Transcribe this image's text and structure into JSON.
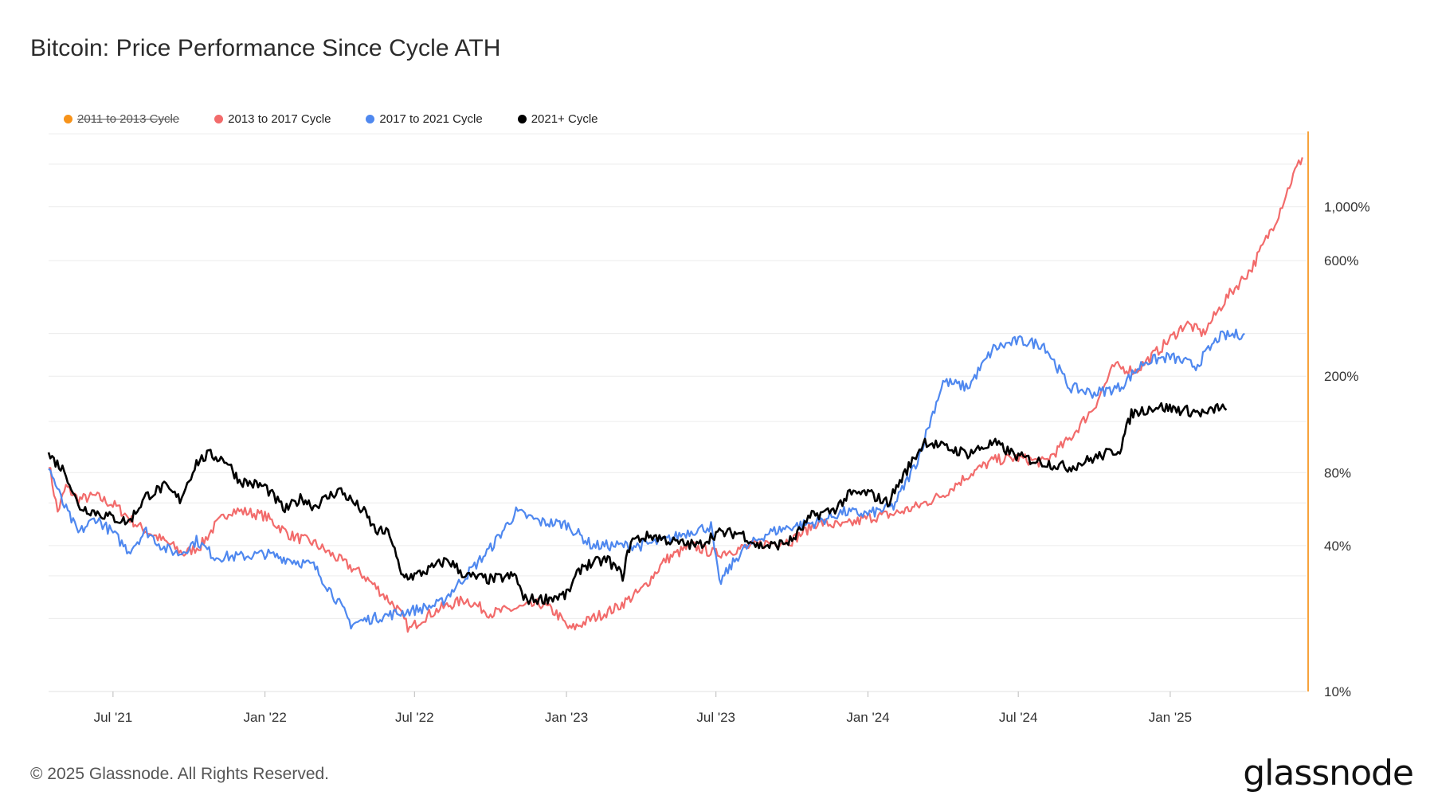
{
  "title": "Bitcoin: Price Performance Since Cycle ATH",
  "footer": {
    "copyright": "© 2025 Glassnode. All Rights Reserved.",
    "logo": "glassnode"
  },
  "colors": {
    "cycle_2011": "#f7931a",
    "cycle_2013": "#f26b6b",
    "cycle_2017": "#4f88ef",
    "cycle_2021": "#000000",
    "marker_line": "#f7a23c",
    "grid": "#ececec"
  },
  "chart_data": {
    "type": "line",
    "title": "Bitcoin: Price Performance Since Cycle ATH",
    "y_scale": "log",
    "ylim": [
      10,
      2000
    ],
    "y_ticks": [
      "10%",
      "40%",
      "80%",
      "200%",
      "600%",
      "1,000%"
    ],
    "x_ticks": [
      "Jul '21",
      "Jan '22",
      "Jul '22",
      "Jan '23",
      "Jul '23",
      "Jan '24",
      "Jul '24",
      "Jan '25"
    ],
    "x_range": [
      "2021-04-14",
      "2025-06-15"
    ],
    "grid": true,
    "legend_position": "top-left",
    "series": [
      {
        "name": "2011 to 2013 Cycle",
        "hidden": true,
        "points": []
      },
      {
        "name": "2013 to 2017 Cycle",
        "points": [
          [
            "2021-04-14",
            88
          ],
          [
            "2021-04-25",
            55
          ],
          [
            "2021-05-05",
            70
          ],
          [
            "2021-05-20",
            62
          ],
          [
            "2021-06-10",
            64
          ],
          [
            "2021-07-05",
            58
          ],
          [
            "2021-08-01",
            48
          ],
          [
            "2021-08-20",
            44
          ],
          [
            "2021-09-10",
            40
          ],
          [
            "2021-09-25",
            37
          ],
          [
            "2021-10-15",
            40
          ],
          [
            "2021-11-01",
            48
          ],
          [
            "2021-11-20",
            56
          ],
          [
            "2021-12-10",
            55
          ],
          [
            "2022-01-01",
            53
          ],
          [
            "2022-02-01",
            44
          ],
          [
            "2022-03-01",
            41
          ],
          [
            "2022-04-01",
            35
          ],
          [
            "2022-05-01",
            30
          ],
          [
            "2022-05-20",
            26
          ],
          [
            "2022-06-10",
            22
          ],
          [
            "2022-06-25",
            18
          ],
          [
            "2022-07-10",
            20
          ],
          [
            "2022-08-01",
            22
          ],
          [
            "2022-09-01",
            24
          ],
          [
            "2022-10-01",
            21
          ],
          [
            "2022-11-01",
            22
          ],
          [
            "2022-12-01",
            23
          ],
          [
            "2022-12-20",
            21
          ],
          [
            "2023-01-05",
            18
          ],
          [
            "2023-02-01",
            20
          ],
          [
            "2023-03-01",
            22
          ],
          [
            "2023-04-01",
            26
          ],
          [
            "2023-05-01",
            35
          ],
          [
            "2023-06-01",
            40
          ],
          [
            "2023-07-01",
            37
          ],
          [
            "2023-08-01",
            39
          ],
          [
            "2023-09-01",
            41
          ],
          [
            "2023-10-01",
            42
          ],
          [
            "2023-11-01",
            50
          ],
          [
            "2023-12-01",
            48
          ],
          [
            "2024-01-01",
            52
          ],
          [
            "2024-02-01",
            54
          ],
          [
            "2024-03-01",
            58
          ],
          [
            "2024-04-01",
            65
          ],
          [
            "2024-05-01",
            78
          ],
          [
            "2024-06-01",
            90
          ],
          [
            "2024-07-01",
            92
          ],
          [
            "2024-08-01",
            88
          ],
          [
            "2024-09-01",
            110
          ],
          [
            "2024-10-01",
            150
          ],
          [
            "2024-10-25",
            220
          ],
          [
            "2024-11-20",
            210
          ],
          [
            "2024-12-20",
            260
          ],
          [
            "2025-01-20",
            330
          ],
          [
            "2025-02-10",
            300
          ],
          [
            "2025-03-10",
            420
          ],
          [
            "2025-04-10",
            560
          ],
          [
            "2025-05-10",
            900
          ],
          [
            "2025-06-01",
            1400
          ],
          [
            "2025-06-10",
            1600
          ]
        ]
      },
      {
        "name": "2017 to 2021 Cycle",
        "points": [
          [
            "2021-04-14",
            85
          ],
          [
            "2021-05-01",
            60
          ],
          [
            "2021-05-20",
            45
          ],
          [
            "2021-06-10",
            52
          ],
          [
            "2021-07-01",
            45
          ],
          [
            "2021-07-20",
            38
          ],
          [
            "2021-08-10",
            46
          ],
          [
            "2021-09-01",
            39
          ],
          [
            "2021-09-20",
            37
          ],
          [
            "2021-10-10",
            42
          ],
          [
            "2021-11-01",
            36
          ],
          [
            "2021-12-01",
            36
          ],
          [
            "2022-01-01",
            37
          ],
          [
            "2022-02-01",
            35
          ],
          [
            "2022-03-01",
            33
          ],
          [
            "2022-04-01",
            23
          ],
          [
            "2022-04-15",
            19
          ],
          [
            "2022-05-10",
            20
          ],
          [
            "2022-06-10",
            21
          ],
          [
            "2022-07-10",
            22
          ],
          [
            "2022-08-01",
            23
          ],
          [
            "2022-09-01",
            30
          ],
          [
            "2022-10-01",
            39
          ],
          [
            "2022-11-01",
            55
          ],
          [
            "2022-12-01",
            50
          ],
          [
            "2023-01-01",
            49
          ],
          [
            "2023-02-01",
            40
          ],
          [
            "2023-03-01",
            40
          ],
          [
            "2023-04-01",
            40
          ],
          [
            "2023-05-01",
            42
          ],
          [
            "2023-06-01",
            46
          ],
          [
            "2023-06-25",
            48
          ],
          [
            "2023-07-05",
            28
          ],
          [
            "2023-08-01",
            38
          ],
          [
            "2023-09-01",
            45
          ],
          [
            "2023-10-01",
            48
          ],
          [
            "2023-11-01",
            50
          ],
          [
            "2023-12-01",
            55
          ],
          [
            "2024-01-01",
            54
          ],
          [
            "2024-02-01",
            58
          ],
          [
            "2024-03-01",
            90
          ],
          [
            "2024-04-01",
            190
          ],
          [
            "2024-05-01",
            180
          ],
          [
            "2024-06-01",
            260
          ],
          [
            "2024-07-01",
            280
          ],
          [
            "2024-08-01",
            270
          ],
          [
            "2024-09-01",
            180
          ],
          [
            "2024-10-01",
            170
          ],
          [
            "2024-11-01",
            180
          ],
          [
            "2024-12-01",
            230
          ],
          [
            "2025-01-01",
            240
          ],
          [
            "2025-02-01",
            220
          ],
          [
            "2025-03-01",
            290
          ],
          [
            "2025-04-01",
            300
          ]
        ]
      },
      {
        "name": "2021+ Cycle",
        "points": [
          [
            "2021-04-14",
            95
          ],
          [
            "2021-05-05",
            80
          ],
          [
            "2021-05-20",
            58
          ],
          [
            "2021-06-10",
            55
          ],
          [
            "2021-07-01",
            52
          ],
          [
            "2021-07-20",
            50
          ],
          [
            "2021-08-10",
            64
          ],
          [
            "2021-09-01",
            70
          ],
          [
            "2021-09-20",
            62
          ],
          [
            "2021-10-10",
            88
          ],
          [
            "2021-10-25",
            95
          ],
          [
            "2021-11-15",
            90
          ],
          [
            "2021-12-01",
            74
          ],
          [
            "2022-01-01",
            70
          ],
          [
            "2022-01-25",
            56
          ],
          [
            "2022-02-15",
            63
          ],
          [
            "2022-03-01",
            58
          ],
          [
            "2022-04-01",
            68
          ],
          [
            "2022-05-01",
            55
          ],
          [
            "2022-05-15",
            46
          ],
          [
            "2022-06-01",
            45
          ],
          [
            "2022-06-15",
            30
          ],
          [
            "2022-07-01",
            30
          ],
          [
            "2022-07-20",
            32
          ],
          [
            "2022-08-10",
            35
          ],
          [
            "2022-09-01",
            30
          ],
          [
            "2022-10-01",
            29
          ],
          [
            "2022-11-01",
            30
          ],
          [
            "2022-11-10",
            24
          ],
          [
            "2022-12-01",
            24
          ],
          [
            "2023-01-01",
            25
          ],
          [
            "2023-01-20",
            33
          ],
          [
            "2023-02-20",
            35
          ],
          [
            "2023-03-10",
            30
          ],
          [
            "2023-03-20",
            42
          ],
          [
            "2023-04-15",
            44
          ],
          [
            "2023-05-15",
            41
          ],
          [
            "2023-06-10",
            40
          ],
          [
            "2023-07-01",
            45
          ],
          [
            "2023-08-01",
            45
          ],
          [
            "2023-08-20",
            40
          ],
          [
            "2023-09-10",
            40
          ],
          [
            "2023-10-01",
            42
          ],
          [
            "2023-10-25",
            53
          ],
          [
            "2023-11-20",
            56
          ],
          [
            "2023-12-10",
            65
          ],
          [
            "2024-01-01",
            66
          ],
          [
            "2024-01-25",
            60
          ],
          [
            "2024-02-15",
            80
          ],
          [
            "2024-03-10",
            108
          ],
          [
            "2024-04-01",
            102
          ],
          [
            "2024-05-01",
            96
          ],
          [
            "2024-06-01",
            106
          ],
          [
            "2024-07-01",
            93
          ],
          [
            "2024-08-01",
            88
          ],
          [
            "2024-09-01",
            84
          ],
          [
            "2024-10-01",
            92
          ],
          [
            "2024-11-01",
            100
          ],
          [
            "2024-11-15",
            140
          ],
          [
            "2024-12-15",
            150
          ],
          [
            "2025-01-15",
            145
          ],
          [
            "2025-02-15",
            140
          ],
          [
            "2025-03-01",
            150
          ],
          [
            "2025-03-10",
            145
          ]
        ]
      }
    ]
  }
}
